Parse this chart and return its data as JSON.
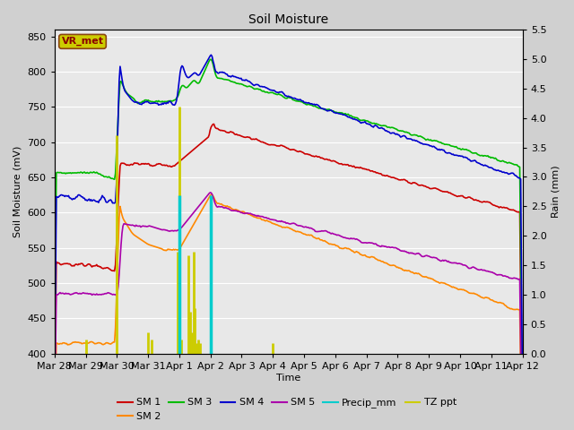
{
  "title": "Soil Moisture",
  "xlabel": "Time",
  "ylabel_left": "Soil Moisture (mV)",
  "ylabel_right": "Rain (mm)",
  "ylim_left": [
    400,
    860
  ],
  "ylim_right": [
    0.0,
    5.5
  ],
  "yticks_left": [
    400,
    450,
    500,
    550,
    600,
    650,
    700,
    750,
    800,
    850
  ],
  "yticks_right": [
    0.0,
    0.5,
    1.0,
    1.5,
    2.0,
    2.5,
    3.0,
    3.5,
    4.0,
    4.5,
    5.0,
    5.5
  ],
  "fig_bg": "#d0d0d0",
  "axes_bg": "#e8e8e8",
  "grid_color": "#ffffff",
  "line_colors": {
    "SM1": "#cc0000",
    "SM2": "#ff8800",
    "SM3": "#00bb00",
    "SM4": "#0000cc",
    "SM5": "#aa00aa",
    "Precip": "#00cccc",
    "TZppt": "#cccc00"
  },
  "legend_box_bg": "#cccc00",
  "legend_box_edge": "#8b4513",
  "legend_box_text": "VR_met",
  "legend_text_color": "#8b0000",
  "n_points": 500
}
